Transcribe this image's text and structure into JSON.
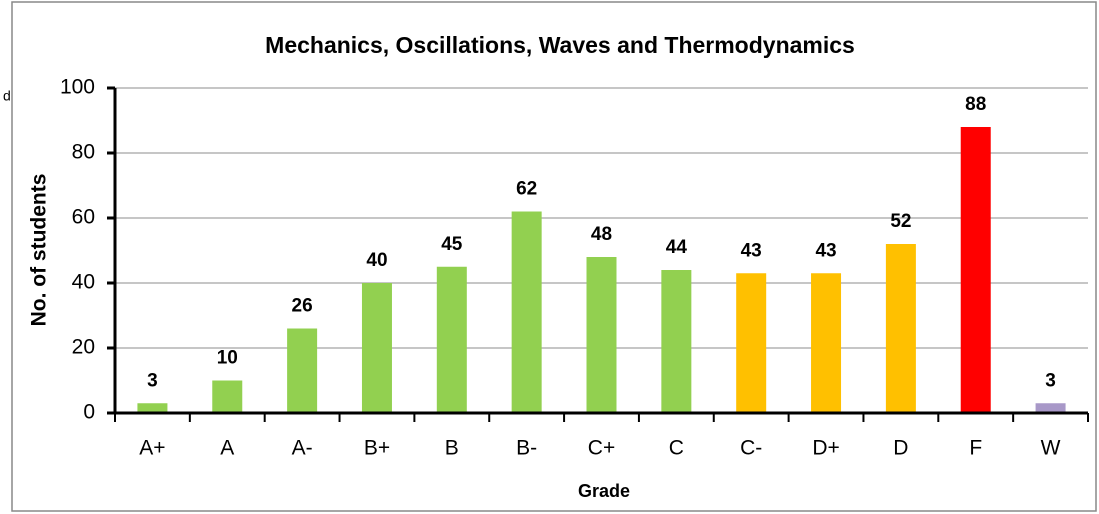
{
  "fragment": "d",
  "chart_data": {
    "type": "bar",
    "title": "Mechanics, Oscillations, Waves and Thermodynamics",
    "x_label": "Grade",
    "y_label": "No. of students",
    "categories": [
      "A+",
      "A",
      "A-",
      "B+",
      "B",
      "B-",
      "C+",
      "C",
      "C-",
      "D+",
      "D",
      "F",
      "W"
    ],
    "values": [
      3,
      10,
      26,
      40,
      45,
      62,
      48,
      44,
      43,
      43,
      52,
      88,
      3
    ],
    "colors": [
      "#92d050",
      "#92d050",
      "#92d050",
      "#92d050",
      "#92d050",
      "#92d050",
      "#92d050",
      "#92d050",
      "#ffc000",
      "#ffc000",
      "#ffc000",
      "#ff0000",
      "#a898c8"
    ],
    "ylim": [
      0,
      100
    ],
    "yticks": [
      0,
      20,
      40,
      60,
      80,
      100
    ],
    "grid": true
  }
}
